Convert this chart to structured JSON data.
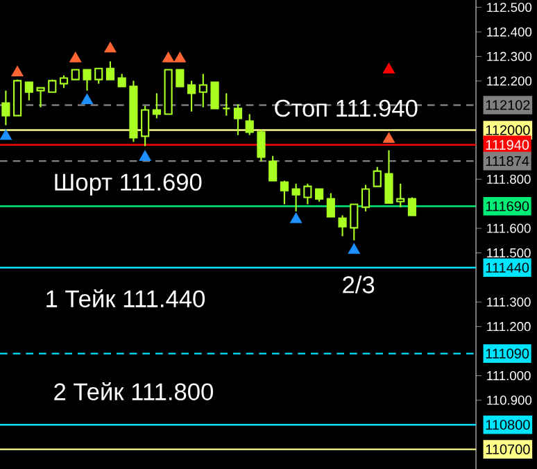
{
  "chart_data": {
    "type": "candlestick",
    "color": "#aaff22",
    "grid": false,
    "tick_labels": "y",
    "categories": [
      null,
      null,
      null,
      null,
      null,
      null,
      null,
      null,
      null,
      null,
      null,
      null,
      null,
      null,
      null,
      null,
      null,
      null,
      null,
      null,
      null,
      null,
      null,
      null,
      null,
      null,
      null,
      null,
      null,
      null,
      null,
      null,
      null,
      null,
      null,
      null,
      null,
      null,
      null,
      null,
      null
    ],
    "ohlc": [
      [
        112.11,
        112.161,
        112.02,
        112.059
      ],
      [
        112.059,
        112.206,
        112.059,
        112.201
      ],
      [
        112.195,
        112.195,
        112.121,
        112.155
      ],
      [
        112.161,
        112.172,
        112.093,
        112.172
      ],
      [
        112.155,
        112.206,
        112.155,
        112.201
      ],
      [
        112.189,
        112.223,
        112.172,
        112.212
      ],
      [
        112.206,
        112.246,
        112.206,
        112.246
      ],
      [
        112.246,
        112.246,
        112.161,
        112.206
      ],
      [
        112.206,
        112.251,
        112.189,
        112.251
      ],
      [
        112.251,
        112.28,
        112.206,
        112.206
      ],
      [
        112.212,
        112.229,
        112.178,
        112.178
      ],
      [
        112.178,
        112.201,
        111.952,
        111.969
      ],
      [
        111.975,
        112.099,
        111.935,
        112.082
      ],
      [
        112.082,
        112.15,
        112.048,
        112.065
      ],
      [
        112.065,
        112.246,
        112.065,
        112.246
      ],
      [
        112.246,
        112.246,
        112.178,
        112.178
      ],
      [
        112.184,
        112.201,
        112.076,
        112.15
      ],
      [
        112.155,
        112.229,
        112.093,
        112.184
      ],
      [
        112.195,
        112.195,
        112.088,
        112.088
      ],
      [
        112.088,
        112.15,
        112.059,
        112.088
      ],
      [
        112.088,
        112.105,
        111.98,
        112.048
      ],
      [
        112.037,
        112.065,
        111.98,
        111.992
      ],
      [
        111.992,
        112.003,
        111.873,
        111.89
      ],
      [
        111.873,
        111.895,
        111.794,
        111.794
      ],
      [
        111.788,
        111.794,
        111.698,
        111.754
      ],
      [
        111.76,
        111.782,
        111.669,
        111.737
      ],
      [
        111.726,
        111.782,
        111.698,
        111.771
      ],
      [
        111.76,
        111.76,
        111.709,
        111.72
      ],
      [
        111.72,
        111.743,
        111.647,
        111.647
      ],
      [
        111.641,
        111.653,
        111.568,
        111.607
      ],
      [
        111.602,
        111.698,
        111.551,
        111.698
      ],
      [
        111.686,
        111.777,
        111.669,
        111.76
      ],
      [
        111.771,
        111.85,
        111.771,
        111.833
      ],
      [
        111.822,
        111.918,
        111.703,
        111.703
      ],
      [
        111.709,
        111.782,
        111.686,
        111.72
      ],
      [
        111.72,
        111.726,
        111.653,
        111.653
      ],
      null,
      null,
      null,
      null,
      null
    ],
    "series": [
      {
        "type": "scatter",
        "marker": "triangle",
        "color": "#ff6633",
        "values": [
          null,
          112.234,
          null,
          null,
          null,
          null,
          112.291,
          null,
          null,
          112.331,
          null,
          null,
          null,
          null,
          112.291,
          112.291,
          null,
          null,
          null,
          null,
          null,
          null,
          null,
          null,
          null,
          null,
          null,
          null,
          null,
          null,
          null,
          null,
          null,
          111.963,
          null,
          null,
          null,
          null,
          null,
          null,
          null
        ]
      },
      {
        "type": "scatter",
        "marker": "triangle",
        "color": "#1e90ff",
        "values": [
          111.975,
          null,
          null,
          null,
          null,
          null,
          null,
          112.121,
          null,
          null,
          null,
          null,
          111.89,
          null,
          null,
          null,
          null,
          null,
          null,
          null,
          null,
          null,
          null,
          null,
          null,
          111.636,
          null,
          null,
          null,
          null,
          111.511,
          null,
          null,
          null,
          null,
          null,
          null,
          null,
          null,
          null,
          null
        ]
      },
      {
        "type": "scatter",
        "marker": "triangle",
        "color": "#ff0000",
        "values": [
          null,
          null,
          null,
          null,
          null,
          null,
          null,
          null,
          null,
          null,
          null,
          null,
          null,
          null,
          null,
          null,
          null,
          null,
          null,
          null,
          null,
          null,
          null,
          null,
          null,
          null,
          null,
          null,
          null,
          null,
          null,
          null,
          null,
          112.246,
          null,
          null,
          null,
          null,
          null,
          null,
          null
        ]
      }
    ],
    "ylim": [
      110.62,
      112.53
    ],
    "yticks": [
      {
        "value": 112.5,
        "label": "112.500"
      },
      {
        "value": 112.4,
        "label": "112.400"
      },
      {
        "value": 112.3,
        "label": "112.300"
      },
      {
        "value": 112.2,
        "label": "112.200"
      },
      {
        "value": 111.8,
        "label": "111.800"
      },
      {
        "value": 111.6,
        "label": "111.600"
      },
      {
        "value": 111.5,
        "label": "111.500"
      },
      {
        "value": 111.3,
        "label": "111.300"
      },
      {
        "value": 111.2,
        "label": "111.200"
      },
      {
        "value": 111.0,
        "label": "111.000"
      },
      {
        "value": 110.9,
        "label": "110.900"
      }
    ],
    "ref_lines": [
      {
        "axis": "y",
        "value": 112.102,
        "label": "112102",
        "color": "#808080",
        "line_style": "dashed"
      },
      {
        "axis": "y",
        "value": 112.0,
        "label": "112000",
        "color": "#ffff88",
        "line_style": "solid"
      },
      {
        "axis": "y",
        "value": 111.94,
        "label": "111940",
        "color": "#ff0000",
        "line_style": "solid"
      },
      {
        "axis": "y",
        "value": 111.874,
        "label": "111874",
        "color": "#808080",
        "line_style": "dashed"
      },
      {
        "axis": "y",
        "value": 111.69,
        "label": "111690",
        "color": "#00ee77",
        "line_style": "solid"
      },
      {
        "axis": "y",
        "value": 111.44,
        "label": "111440",
        "color": "#00e5ff",
        "line_style": "solid"
      },
      {
        "axis": "y",
        "value": 111.09,
        "label": "111090",
        "color": "#00e5ff",
        "line_style": "dashed"
      },
      {
        "axis": "y",
        "value": 110.8,
        "label": "110800",
        "color": "#00e5ff",
        "line_style": "solid"
      },
      {
        "axis": "y",
        "value": 110.7,
        "label": "110700",
        "color": "#ffff88",
        "line_style": "solid"
      }
    ],
    "annotations": [
      "Стоп 111.940",
      "Шорт 111.690",
      "1 Тейк 111.440",
      "2/3",
      "2 Тейк 111.800"
    ]
  }
}
